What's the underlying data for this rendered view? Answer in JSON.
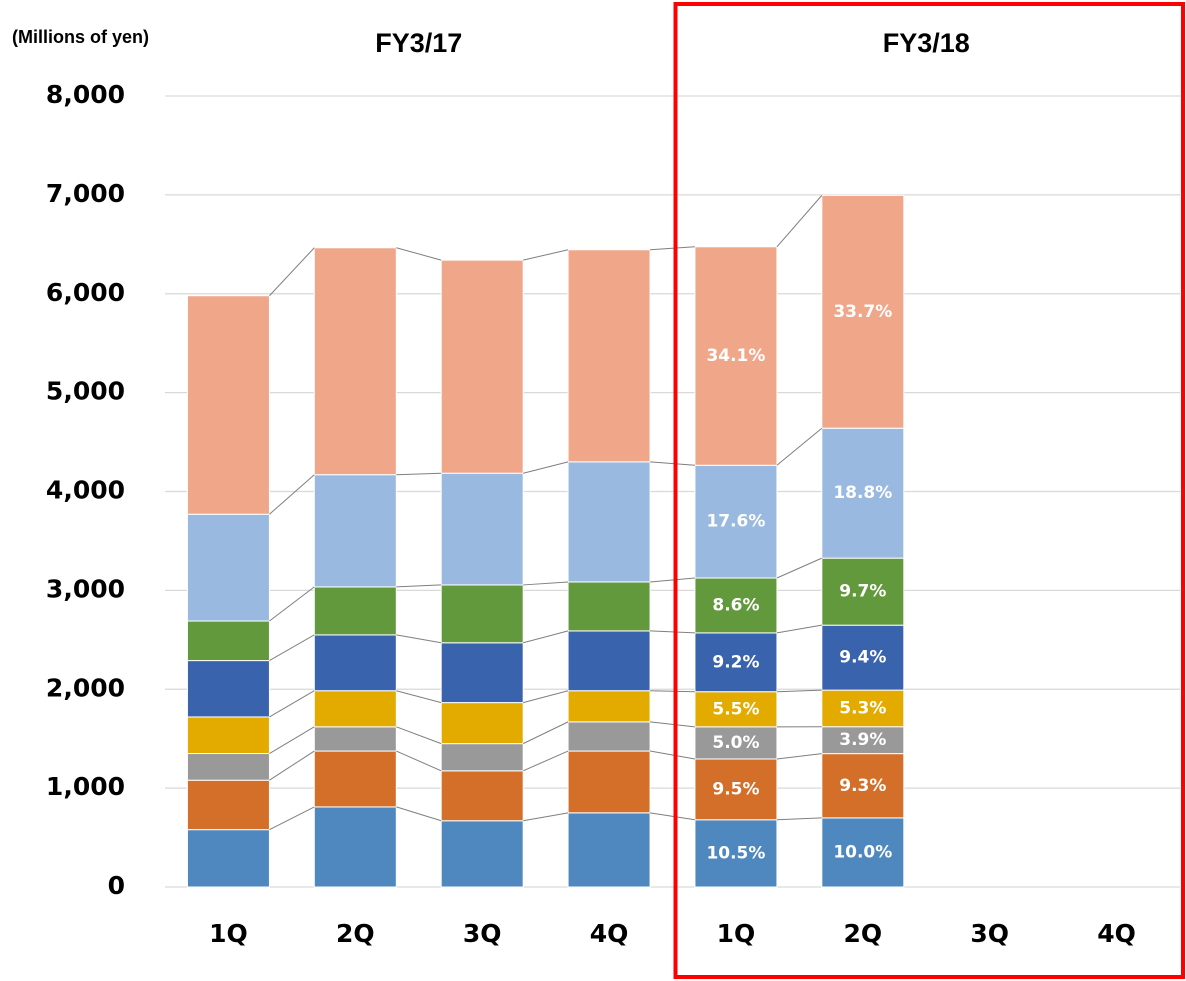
{
  "chart_data": {
    "type": "stacked_bar",
    "unit_label": "(Millions of yen)",
    "groups": [
      {
        "label": "FY3/17",
        "span": [
          0,
          3
        ]
      },
      {
        "label": "FY3/18",
        "span": [
          4,
          7
        ]
      }
    ],
    "highlight_group": 1,
    "categories": [
      "1Q",
      "2Q",
      "3Q",
      "4Q",
      "1Q",
      "2Q",
      "3Q",
      "4Q"
    ],
    "series": [
      {
        "color": "#4f88bf",
        "values": [
          580,
          810,
          670,
          750,
          680,
          699,
          null,
          null
        ],
        "share_labels": [
          null,
          null,
          null,
          null,
          "10.5%",
          "10.0%",
          null,
          null
        ]
      },
      {
        "color": "#d46f2a",
        "values": [
          500,
          565,
          505,
          625,
          615,
          650,
          null,
          null
        ],
        "share_labels": [
          null,
          null,
          null,
          null,
          "9.5%",
          "9.3%",
          null,
          null
        ]
      },
      {
        "color": "#999999",
        "values": [
          270,
          245,
          275,
          295,
          325,
          272,
          null,
          null
        ],
        "share_labels": [
          null,
          null,
          null,
          null,
          "5.0%",
          "3.9%",
          null,
          null
        ]
      },
      {
        "color": "#e3aa00",
        "values": [
          370,
          365,
          415,
          315,
          355,
          370,
          null,
          null
        ],
        "share_labels": [
          null,
          null,
          null,
          null,
          "5.5%",
          "5.3%",
          null,
          null
        ]
      },
      {
        "color": "#3a63ad",
        "values": [
          570,
          565,
          605,
          605,
          595,
          657,
          null,
          null
        ],
        "share_labels": [
          null,
          null,
          null,
          null,
          "9.2%",
          "9.4%",
          null,
          null
        ]
      },
      {
        "color": "#62993d",
        "values": [
          400,
          485,
          585,
          495,
          555,
          678,
          null,
          null
        ],
        "share_labels": [
          null,
          null,
          null,
          null,
          "8.6%",
          "9.7%",
          null,
          null
        ]
      },
      {
        "color": "#9ab9e0",
        "values": [
          1080,
          1135,
          1130,
          1215,
          1140,
          1314,
          null,
          null
        ],
        "share_labels": [
          null,
          null,
          null,
          null,
          "17.6%",
          "18.8%",
          null,
          null
        ]
      },
      {
        "color": "#f0a789",
        "values": [
          2210,
          2295,
          2155,
          2145,
          2210,
          2355,
          null,
          null
        ],
        "share_labels": [
          null,
          null,
          null,
          null,
          "34.1%",
          "33.7%",
          null,
          null
        ]
      }
    ],
    "ylim": [
      0,
      8000
    ],
    "yticks": [
      0,
      {
        "value": 1000,
        "label": "1,000"
      },
      {
        "value": 2000,
        "label": "2,000"
      },
      {
        "value": 3000,
        "label": "3,000"
      },
      {
        "value": 4000,
        "label": "4,000"
      },
      {
        "value": 5000,
        "label": "5,000"
      },
      {
        "value": 6000,
        "label": "6,000"
      },
      {
        "value": 7000,
        "label": "7,000"
      },
      {
        "value": 8000,
        "label": "8,000"
      }
    ],
    "grid": true
  }
}
